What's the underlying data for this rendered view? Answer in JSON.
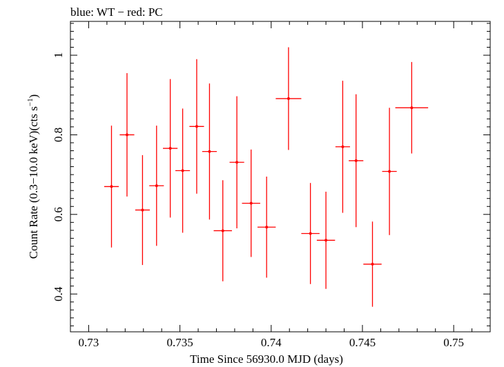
{
  "chart_data": {
    "type": "scatter",
    "title": "blue: WT − red: PC",
    "xlabel": "Time Since 56930.0 MJD (days)",
    "ylabel_main": "Count Rate (0.3−10.0 keV)(cts s",
    "ylabel_exp": "−1",
    "ylabel_close": ")",
    "xlim": [
      0.729,
      0.752
    ],
    "ylim": [
      0.305,
      1.085
    ],
    "xticks": [
      {
        "value": 0.73,
        "label": "0.73"
      },
      {
        "value": 0.735,
        "label": "0.735"
      },
      {
        "value": 0.74,
        "label": "0.74"
      },
      {
        "value": 0.745,
        "label": "0.745"
      },
      {
        "value": 0.75,
        "label": "0.75"
      }
    ],
    "yticks": [
      {
        "value": 0.4,
        "label": "0.4"
      },
      {
        "value": 0.6,
        "label": "0.6"
      },
      {
        "value": 0.8,
        "label": "0.8"
      },
      {
        "value": 1.0,
        "label": "1"
      }
    ],
    "series": [
      {
        "name": "PC",
        "color": "#ff0000",
        "points": [
          {
            "x": 0.73125,
            "xerr": 0.0004,
            "y": 0.67,
            "yerr": 0.153
          },
          {
            "x": 0.7321,
            "xerr": 0.0004,
            "y": 0.8,
            "yerr": 0.155
          },
          {
            "x": 0.73295,
            "xerr": 0.0004,
            "y": 0.611,
            "yerr": 0.138
          },
          {
            "x": 0.73372,
            "xerr": 0.0004,
            "y": 0.672,
            "yerr": 0.151
          },
          {
            "x": 0.73447,
            "xerr": 0.0004,
            "y": 0.766,
            "yerr": 0.174
          },
          {
            "x": 0.73515,
            "xerr": 0.0004,
            "y": 0.71,
            "yerr": 0.156
          },
          {
            "x": 0.73592,
            "xerr": 0.0004,
            "y": 0.821,
            "yerr": 0.169
          },
          {
            "x": 0.73662,
            "xerr": 0.0004,
            "y": 0.758,
            "yerr": 0.171
          },
          {
            "x": 0.73735,
            "xerr": 0.0005,
            "y": 0.559,
            "yerr": 0.127
          },
          {
            "x": 0.73812,
            "xerr": 0.0004,
            "y": 0.731,
            "yerr": 0.166
          },
          {
            "x": 0.7389,
            "xerr": 0.0005,
            "y": 0.628,
            "yerr": 0.135
          },
          {
            "x": 0.73975,
            "xerr": 0.0005,
            "y": 0.568,
            "yerr": 0.127
          },
          {
            "x": 0.74095,
            "xerr": 0.0007,
            "y": 0.891,
            "yerr": 0.129
          },
          {
            "x": 0.74215,
            "xerr": 0.0005,
            "y": 0.552,
            "yerr": 0.127
          },
          {
            "x": 0.743,
            "xerr": 0.0005,
            "y": 0.535,
            "yerr": 0.122
          },
          {
            "x": 0.74392,
            "xerr": 0.0004,
            "y": 0.77,
            "yerr": 0.166
          },
          {
            "x": 0.74465,
            "xerr": 0.0004,
            "y": 0.735,
            "yerr": 0.167
          },
          {
            "x": 0.74555,
            "xerr": 0.0005,
            "y": 0.475,
            "yerr": 0.107
          },
          {
            "x": 0.74648,
            "xerr": 0.0004,
            "y": 0.708,
            "yerr": 0.16
          },
          {
            "x": 0.7477,
            "xerr": 0.0009,
            "y": 0.868,
            "yerr": 0.115
          }
        ]
      }
    ]
  }
}
